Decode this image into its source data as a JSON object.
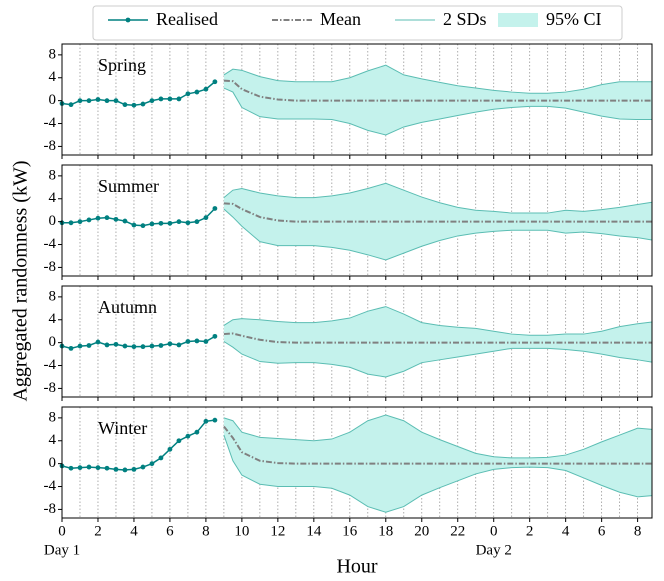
{
  "figure": {
    "ylabel": "Aggregated randomness (kW)",
    "xlabel": "Hour",
    "legend": "top",
    "annotations": [
      {
        "text": "Day 1",
        "x": 0
      },
      {
        "text": "Day 2",
        "x": 24
      }
    ]
  },
  "chart_data": [
    {
      "type": "line",
      "title": "Spring",
      "xlim": [
        0,
        32.8
      ],
      "ylim": [
        -9.5,
        9.9
      ],
      "xticks": [
        0,
        2,
        4,
        6,
        8,
        10,
        12,
        14,
        16,
        18,
        20,
        22,
        {
          "value": 24,
          "label": "0"
        },
        {
          "value": 26,
          "label": "2"
        },
        {
          "value": 28,
          "label": "4"
        },
        {
          "value": 30,
          "label": "6"
        },
        {
          "value": 32,
          "label": "8"
        }
      ],
      "xminorticks": [
        1,
        3,
        5,
        7,
        9,
        11,
        13,
        15,
        17,
        19,
        21,
        23,
        25,
        27,
        29,
        31
      ],
      "yticks": [
        -8,
        -4,
        0,
        4,
        8
      ],
      "grid": "x",
      "series": [
        {
          "name": "Realised",
          "color": "#008080",
          "x": [
            0,
            0.5,
            1,
            1.5,
            2,
            2.5,
            3,
            3.5,
            4,
            4.5,
            5,
            5.5,
            6,
            6.5,
            7,
            7.5,
            8,
            8.5
          ],
          "values": [
            -0.5,
            -0.7,
            0,
            0,
            0.2,
            0,
            0,
            -0.7,
            -0.8,
            -0.6,
            0,
            0.3,
            0.3,
            0.3,
            1.2,
            1.5,
            2,
            3.3
          ]
        },
        {
          "name": "Mean",
          "color": "#808080",
          "x": [
            9,
            9.5,
            10,
            11,
            12,
            13,
            14,
            15,
            16,
            17,
            18,
            19,
            20,
            21,
            22,
            23,
            24,
            25,
            26,
            27,
            28,
            29,
            30,
            31,
            32,
            32.8
          ],
          "values": [
            3.5,
            3.4,
            2,
            0.7,
            0.2,
            0,
            0,
            0,
            0,
            0,
            0,
            0,
            0,
            0,
            0,
            0,
            0,
            0,
            0,
            0,
            0,
            0,
            0,
            0,
            0,
            0
          ]
        },
        {
          "name": "2 SDs",
          "color": "#5bbdb3",
          "x": [
            9,
            9.5,
            10,
            11,
            12,
            13,
            14,
            15,
            16,
            17,
            18,
            19,
            20,
            21,
            22,
            23,
            24,
            25,
            26,
            27,
            28,
            29,
            30,
            31,
            32,
            32.8
          ],
          "values": [
            4.5,
            5.5,
            5.3,
            4.2,
            3.5,
            3.3,
            3.3,
            3.3,
            4,
            5.2,
            6.2,
            4.5,
            3.8,
            3.2,
            2.6,
            2.2,
            1.8,
            1.5,
            1.3,
            1.3,
            1.5,
            2,
            2.8,
            3.3,
            3.3,
            3.3
          ],
          "lower": [
            2.2,
            1.5,
            -1.2,
            -2.8,
            -3.2,
            -3.2,
            -3.2,
            -3.3,
            -4,
            -5.2,
            -6,
            -4.6,
            -3.8,
            -3.2,
            -2.6,
            -2,
            -1.5,
            -1.2,
            -1,
            -1,
            -1.3,
            -2,
            -2.7,
            -3.2,
            -3.3,
            -3.3
          ]
        },
        {
          "name": "95% CI",
          "color": "#c4f2ec"
        }
      ]
    },
    {
      "type": "line",
      "title": "Summer",
      "xlim": [
        0,
        32.8
      ],
      "ylim": [
        -9.5,
        9.9
      ],
      "xticks": [
        0,
        2,
        4,
        6,
        8,
        10,
        12,
        14,
        16,
        18,
        20,
        22,
        {
          "value": 24,
          "label": "0"
        },
        {
          "value": 26,
          "label": "2"
        },
        {
          "value": 28,
          "label": "4"
        },
        {
          "value": 30,
          "label": "6"
        },
        {
          "value": 32,
          "label": "8"
        }
      ],
      "xminorticks": [
        1,
        3,
        5,
        7,
        9,
        11,
        13,
        15,
        17,
        19,
        21,
        23,
        25,
        27,
        29,
        31
      ],
      "yticks": [
        -8,
        -4,
        0,
        4,
        8
      ],
      "grid": "x",
      "series": [
        {
          "name": "Realised",
          "color": "#008080",
          "x": [
            0,
            0.5,
            1,
            1.5,
            2,
            2.5,
            3,
            3.5,
            4,
            4.5,
            5,
            5.5,
            6,
            6.5,
            7,
            7.5,
            8,
            8.5
          ],
          "values": [
            -0.2,
            -0.2,
            0,
            0.3,
            0.6,
            0.7,
            0.4,
            0.1,
            -0.6,
            -0.7,
            -0.4,
            -0.3,
            -0.3,
            0,
            -0.2,
            0,
            0.7,
            2.3
          ]
        },
        {
          "name": "Mean",
          "color": "#808080",
          "x": [
            9,
            9.5,
            10,
            11,
            12,
            13,
            14,
            15,
            16,
            17,
            18,
            19,
            20,
            21,
            22,
            23,
            24,
            25,
            26,
            27,
            28,
            29,
            30,
            31,
            32,
            32.8
          ],
          "values": [
            3.2,
            3.1,
            2.2,
            0.8,
            0.2,
            0,
            0,
            0,
            0,
            0,
            0,
            0,
            0,
            0,
            0,
            0,
            0,
            0,
            0,
            0,
            0,
            0,
            0,
            0,
            0,
            0
          ]
        },
        {
          "name": "2 SDs",
          "color": "#5bbdb3",
          "x": [
            9,
            9.5,
            10,
            11,
            12,
            13,
            14,
            15,
            16,
            17,
            18,
            19,
            20,
            21,
            22,
            23,
            24,
            25,
            26,
            27,
            28,
            29,
            30,
            31,
            32,
            32.8
          ],
          "values": [
            4.2,
            5.5,
            5.8,
            5,
            4.5,
            4.2,
            4.2,
            4.5,
            5,
            5.8,
            6.7,
            5.5,
            4.3,
            3.3,
            2.5,
            2,
            1.8,
            1.5,
            1.5,
            1.5,
            2,
            1.8,
            2.1,
            2.5,
            3,
            3.4
          ],
          "lower": [
            2.2,
            0.8,
            -0.8,
            -3.5,
            -4.2,
            -4.2,
            -4.2,
            -4.5,
            -5,
            -5.8,
            -6.7,
            -5.5,
            -4.3,
            -3.3,
            -2.5,
            -2,
            -1.7,
            -1.5,
            -1.5,
            -1.5,
            -2,
            -1.8,
            -2.1,
            -2.5,
            -2.8,
            -3.2
          ]
        },
        {
          "name": "95% CI",
          "color": "#c4f2ec"
        }
      ]
    },
    {
      "type": "line",
      "title": "Autumn",
      "xlim": [
        0,
        32.8
      ],
      "ylim": [
        -9.5,
        9.9
      ],
      "xticks": [
        0,
        2,
        4,
        6,
        8,
        10,
        12,
        14,
        16,
        18,
        20,
        22,
        {
          "value": 24,
          "label": "0"
        },
        {
          "value": 26,
          "label": "2"
        },
        {
          "value": 28,
          "label": "4"
        },
        {
          "value": 30,
          "label": "6"
        },
        {
          "value": 32,
          "label": "8"
        }
      ],
      "xminorticks": [
        1,
        3,
        5,
        7,
        9,
        11,
        13,
        15,
        17,
        19,
        21,
        23,
        25,
        27,
        29,
        31
      ],
      "yticks": [
        -8,
        -4,
        0,
        4,
        8
      ],
      "grid": "x",
      "series": [
        {
          "name": "Realised",
          "color": "#008080",
          "x": [
            0,
            0.5,
            1,
            1.5,
            2,
            2.5,
            3,
            3.5,
            4,
            4.5,
            5,
            5.5,
            6,
            6.5,
            7,
            7.5,
            8,
            8.5
          ],
          "values": [
            -0.6,
            -1,
            -0.6,
            -0.5,
            0.1,
            -0.4,
            -0.3,
            -0.6,
            -0.7,
            -0.7,
            -0.6,
            -0.5,
            -0.2,
            -0.4,
            0.2,
            0.3,
            0.2,
            1.1
          ]
        },
        {
          "name": "Mean",
          "color": "#808080",
          "x": [
            9,
            9.5,
            10,
            11,
            12,
            13,
            14,
            15,
            16,
            17,
            18,
            19,
            20,
            21,
            22,
            23,
            24,
            25,
            26,
            27,
            28,
            29,
            30,
            31,
            32,
            32.8
          ],
          "values": [
            1.5,
            1.6,
            1.2,
            0.5,
            0.1,
            0,
            0,
            0,
            0,
            0,
            0,
            0,
            0,
            0,
            0,
            0,
            0,
            0,
            0,
            0,
            0,
            0,
            0,
            0,
            0,
            0
          ]
        },
        {
          "name": "2 SDs",
          "color": "#5bbdb3",
          "x": [
            9,
            9.5,
            10,
            11,
            12,
            13,
            14,
            15,
            16,
            17,
            18,
            19,
            20,
            21,
            22,
            23,
            24,
            25,
            26,
            27,
            28,
            29,
            30,
            31,
            32,
            32.8
          ],
          "values": [
            3,
            4,
            4.2,
            4,
            3.7,
            3.5,
            3.5,
            3.8,
            4.3,
            5.5,
            6.3,
            5,
            3.5,
            3,
            2.7,
            2.5,
            2,
            1.5,
            1.3,
            1.3,
            1.5,
            1.5,
            2,
            2.8,
            3.3,
            3.6
          ],
          "lower": [
            0.2,
            -0.8,
            -2,
            -3.3,
            -3.6,
            -3.5,
            -3.5,
            -3.8,
            -4.3,
            -5.5,
            -6,
            -5,
            -3.5,
            -3,
            -2.5,
            -2,
            -1.5,
            -1,
            -1,
            -1,
            -1.2,
            -1.5,
            -2,
            -2.6,
            -3,
            -3.4
          ]
        },
        {
          "name": "95% CI",
          "color": "#c4f2ec"
        }
      ]
    },
    {
      "type": "line",
      "title": "Winter",
      "xlim": [
        0,
        32.8
      ],
      "ylim": [
        -9.5,
        9.9
      ],
      "xticks": [
        0,
        2,
        4,
        6,
        8,
        10,
        12,
        14,
        16,
        18,
        20,
        22,
        {
          "value": 24,
          "label": "0"
        },
        {
          "value": 26,
          "label": "2"
        },
        {
          "value": 28,
          "label": "4"
        },
        {
          "value": 30,
          "label": "6"
        },
        {
          "value": 32,
          "label": "8"
        }
      ],
      "xminorticks": [
        1,
        3,
        5,
        7,
        9,
        11,
        13,
        15,
        17,
        19,
        21,
        23,
        25,
        27,
        29,
        31
      ],
      "yticks": [
        -8,
        -4,
        0,
        4,
        8
      ],
      "grid": "x",
      "series": [
        {
          "name": "Realised",
          "color": "#008080",
          "x": [
            0,
            0.5,
            1,
            1.5,
            2,
            2.5,
            3,
            3.5,
            4,
            4.5,
            5,
            5.5,
            6,
            6.5,
            7,
            7.5,
            8,
            8.5
          ],
          "values": [
            -0.4,
            -0.8,
            -0.7,
            -0.6,
            -0.7,
            -0.8,
            -1,
            -1.1,
            -1,
            -0.6,
            0,
            1,
            2.5,
            4,
            4.8,
            5.5,
            7.4,
            7.6
          ]
        },
        {
          "name": "Mean",
          "color": "#808080",
          "x": [
            9,
            9.5,
            10,
            11,
            12,
            13,
            14,
            15,
            16,
            17,
            18,
            19,
            20,
            21,
            22,
            23,
            24,
            25,
            26,
            27,
            28,
            29,
            30,
            31,
            32,
            32.8
          ],
          "values": [
            6.5,
            4.5,
            2,
            0.5,
            0.1,
            0,
            0,
            0,
            0,
            0,
            0,
            0,
            0,
            0,
            0,
            0,
            0,
            0,
            0,
            0,
            0,
            0,
            0,
            0,
            0,
            0
          ]
        },
        {
          "name": "2 SDs",
          "color": "#5bbdb3",
          "x": [
            9,
            9.5,
            10,
            11,
            12,
            13,
            14,
            15,
            16,
            17,
            18,
            19,
            20,
            21,
            22,
            23,
            24,
            25,
            26,
            27,
            28,
            29,
            30,
            31,
            32,
            32.8
          ],
          "values": [
            8,
            7.5,
            5.5,
            4.6,
            4.4,
            4.2,
            4,
            4.3,
            5.5,
            7.5,
            8.5,
            7.5,
            5.5,
            4.2,
            3,
            1.8,
            1.2,
            1,
            1,
            1.1,
            1.5,
            2.5,
            3.8,
            5,
            6.2,
            6
          ],
          "lower": [
            5,
            0.5,
            -2,
            -3.6,
            -4,
            -4,
            -4,
            -4.3,
            -5.5,
            -7.5,
            -8.5,
            -7.5,
            -5.5,
            -4.2,
            -3,
            -1.8,
            -1,
            -0.7,
            -0.6,
            -0.7,
            -1.2,
            -2.5,
            -3.8,
            -5,
            -5.8,
            -5.6
          ]
        },
        {
          "name": "95% CI",
          "color": "#c4f2ec"
        }
      ]
    }
  ]
}
